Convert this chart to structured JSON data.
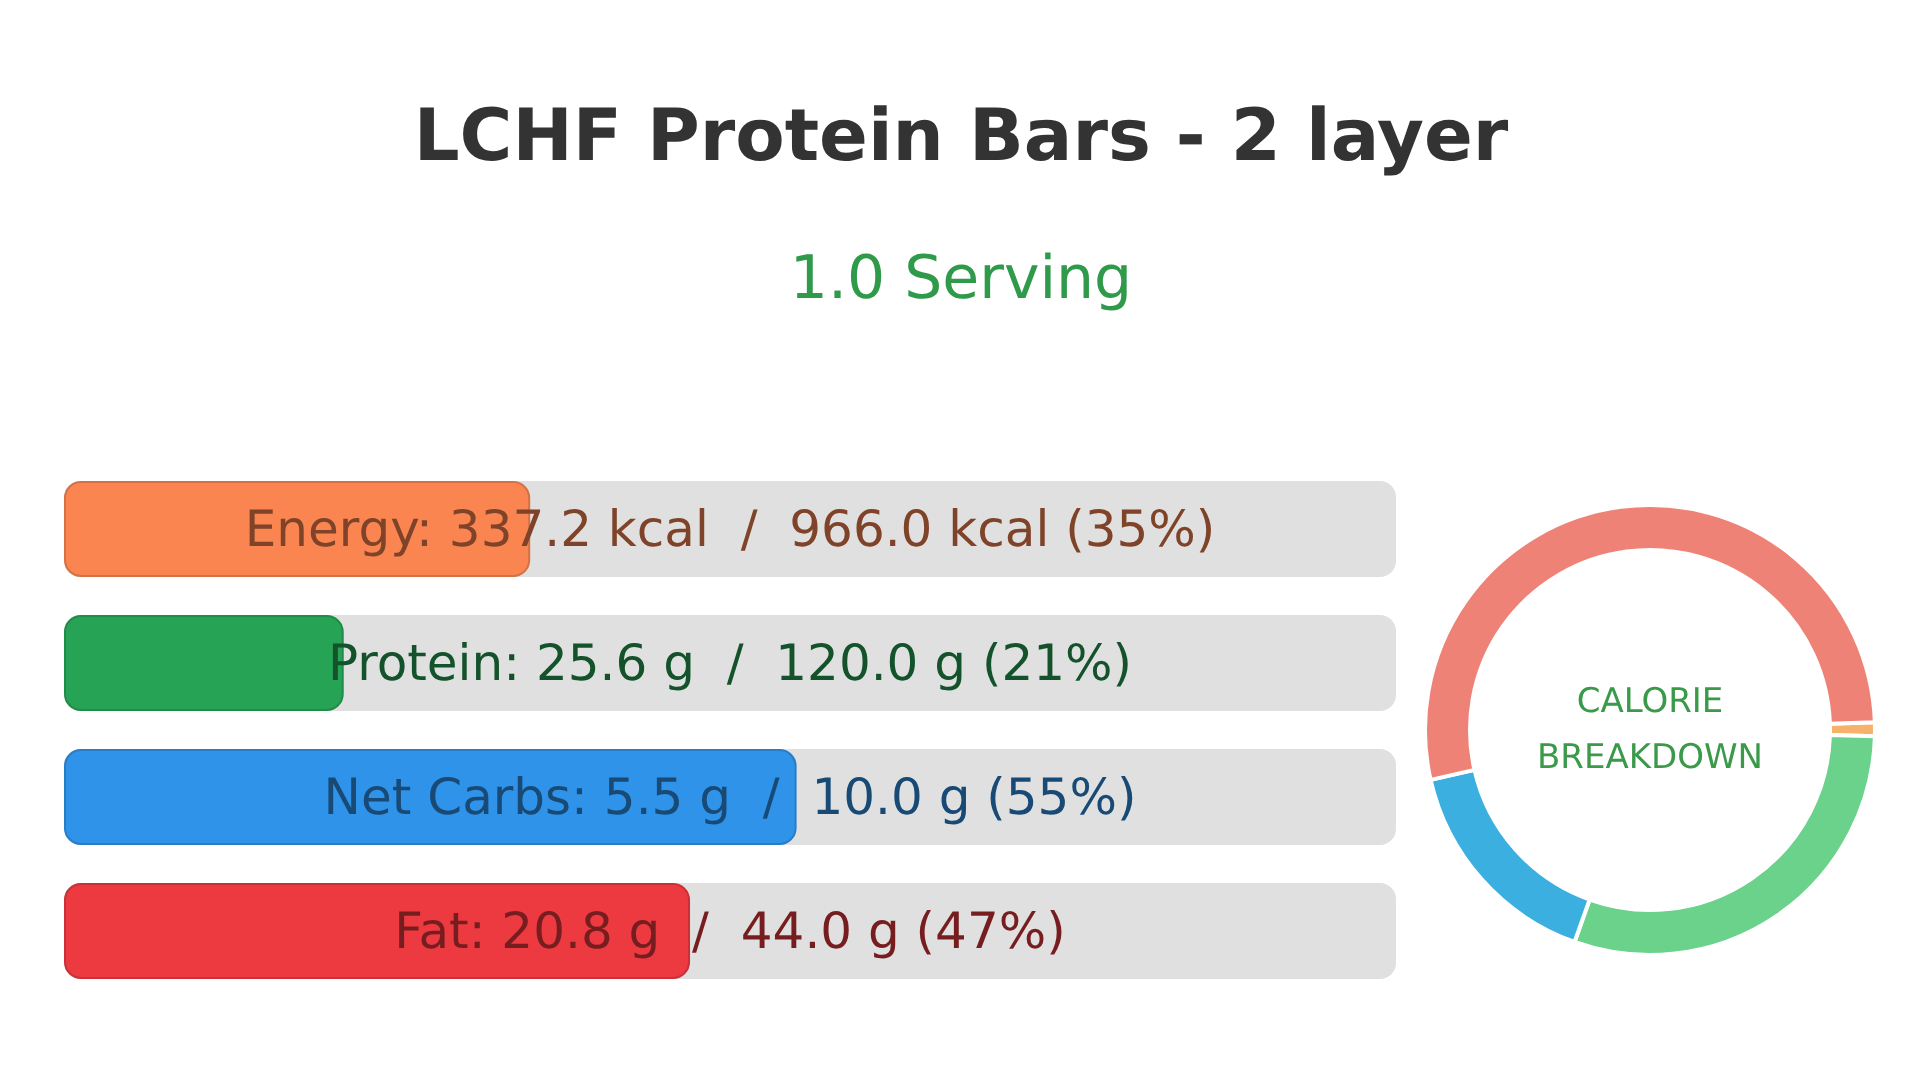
{
  "chart_data": [
    {
      "type": "bar",
      "orientation": "horizontal",
      "title": "LCHF Protein Bars - 2 layer",
      "subtitle": "1.0 Serving",
      "categories": [
        null,
        null,
        null,
        null
      ],
      "values": [
        35,
        21,
        55,
        47
      ],
      "colors": [
        "#fb8550",
        "#27a356",
        "#2f93ea",
        "#ec3a40"
      ],
      "value_labels": [
        "Energy: 337.2 kcal  /  966.0 kcal (35%)",
        "Protein: 25.6 g  /  120.0 g (21%)",
        "Net Carbs: 5.5 g  /  10.0 g (55%)",
        "Fat: 20.8 g  /  44.0 g (47%)"
      ],
      "xlim": [
        0,
        100
      ],
      "tick_labels": false
    },
    {
      "type": "donut",
      "categories": [
        null,
        null,
        null,
        null
      ],
      "values": [
        1,
        30,
        16,
        53
      ],
      "colors": [
        "#f6b26b",
        "#6ad28a",
        "#3bb0e0",
        "#ef8276"
      ],
      "annotations": [
        "CALORIE\nBREAKDOWN"
      ]
    }
  ]
}
